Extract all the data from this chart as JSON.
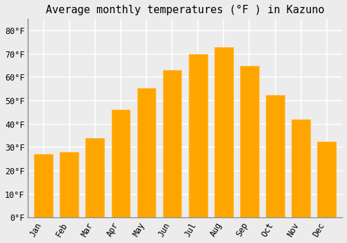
{
  "title": "Average monthly temperatures (°F ) in Kazuno",
  "months": [
    "Jan",
    "Feb",
    "Mar",
    "Apr",
    "May",
    "Jun",
    "Jul",
    "Aug",
    "Sep",
    "Oct",
    "Nov",
    "Dec"
  ],
  "values": [
    27,
    28,
    34,
    46,
    55.5,
    63,
    70,
    73,
    65,
    52.5,
    42,
    32.5
  ],
  "bar_color": "#FFA500",
  "bar_edge_color": "#FFB733",
  "background_color": "#ECECEC",
  "plot_bg_color": "#ECECEC",
  "grid_color": "#FFFFFF",
  "ylim": [
    0,
    85
  ],
  "yticks": [
    0,
    10,
    20,
    30,
    40,
    50,
    60,
    70,
    80
  ],
  "title_fontsize": 11,
  "tick_fontsize": 8.5,
  "font_family": "monospace"
}
